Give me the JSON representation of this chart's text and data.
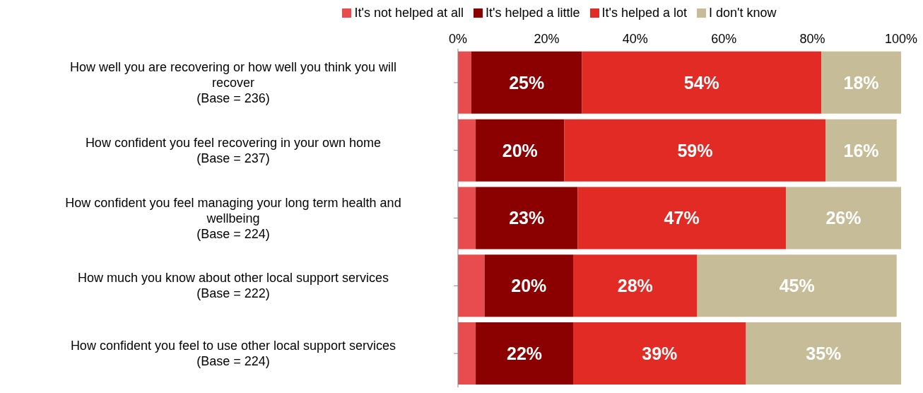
{
  "chart_data": {
    "type": "bar",
    "orientation": "horizontal",
    "stacked": true,
    "categories": [
      "How well you are recovering or how well you think you will recover (Base = 236)",
      "How confident you feel recovering in your own home (Base = 237)",
      "How confident you feel managing your long term health and wellbeing (Base = 224)",
      "How much you know about other local support services (Base = 222)",
      "How confident you feel to use other local support services (Base = 224)"
    ],
    "series": [
      {
        "name": "It's not helped at all",
        "color": "#e84c4f",
        "values": [
          3,
          4,
          4,
          6,
          4
        ],
        "value_labels": [
          null,
          null,
          null,
          null,
          null
        ]
      },
      {
        "name": "It's helped a little",
        "color": "#8b0000",
        "values": [
          25,
          20,
          23,
          20,
          22
        ],
        "value_labels": [
          "25%",
          "20%",
          "23%",
          "20%",
          "22%"
        ]
      },
      {
        "name": "It's helped a lot",
        "color": "#e32b26",
        "values": [
          54,
          59,
          47,
          28,
          39
        ],
        "value_labels": [
          "54%",
          "59%",
          "47%",
          "28%",
          "39%"
        ]
      },
      {
        "name": "I don't know",
        "color": "#c6bc97",
        "values": [
          18,
          16,
          26,
          45,
          35
        ],
        "value_labels": [
          "18%",
          "16%",
          "26%",
          "45%",
          "35%"
        ]
      }
    ],
    "xlim": [
      0,
      100
    ],
    "xticks": [
      {
        "value": 0,
        "label": "0%"
      },
      {
        "value": 20,
        "label": "20%"
      },
      {
        "value": 40,
        "label": "40%"
      },
      {
        "value": 60,
        "label": "60%"
      },
      {
        "value": 80,
        "label": "80%"
      },
      {
        "value": 100,
        "label": "100%"
      }
    ],
    "grid": false,
    "legend": "top"
  }
}
